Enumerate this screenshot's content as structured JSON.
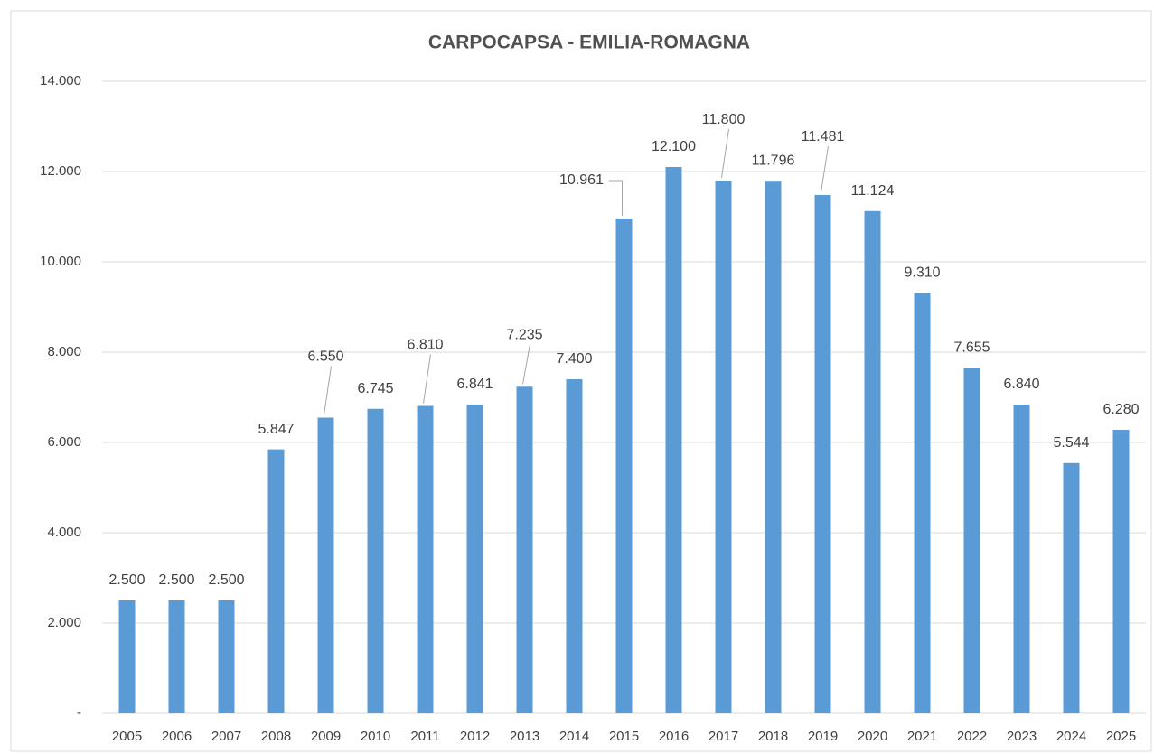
{
  "chart_data": {
    "type": "bar",
    "title": "CARPOCAPSA - EMILIA-ROMAGNA",
    "categories": [
      "2005",
      "2006",
      "2007",
      "2008",
      "2009",
      "2010",
      "2011",
      "2012",
      "2013",
      "2014",
      "2015",
      "2016",
      "2017",
      "2018",
      "2019",
      "2020",
      "2021",
      "2022",
      "2023",
      "2024",
      "2025"
    ],
    "values": [
      2500,
      2500,
      2500,
      5847,
      6550,
      6745,
      6810,
      6841,
      7235,
      7400,
      10961,
      12100,
      11800,
      11796,
      11481,
      11124,
      9310,
      7655,
      6840,
      5544,
      6280
    ],
    "value_labels": [
      "2.500",
      "2.500",
      "2.500",
      "5.847",
      "6.550",
      "6.745",
      "6.810",
      "6.841",
      "7.235",
      "7.400",
      "10.961",
      "12.100",
      "11.800",
      "11.796",
      "11.481",
      "11.124",
      "9.310",
      "7.655",
      "6.840",
      "5.544",
      "6.280"
    ],
    "color": "#5b9bd5",
    "ylim": [
      0,
      14000
    ],
    "yticks": [
      {
        "value": 0,
        "label": "-"
      },
      {
        "value": 2000,
        "label": "2.000"
      },
      {
        "value": 4000,
        "label": "4.000"
      },
      {
        "value": 6000,
        "label": "6.000"
      },
      {
        "value": 8000,
        "label": "8.000"
      },
      {
        "value": 10000,
        "label": "10.000"
      },
      {
        "value": 12000,
        "label": "12.000"
      },
      {
        "value": 14000,
        "label": "14.000"
      }
    ],
    "grid": true
  }
}
